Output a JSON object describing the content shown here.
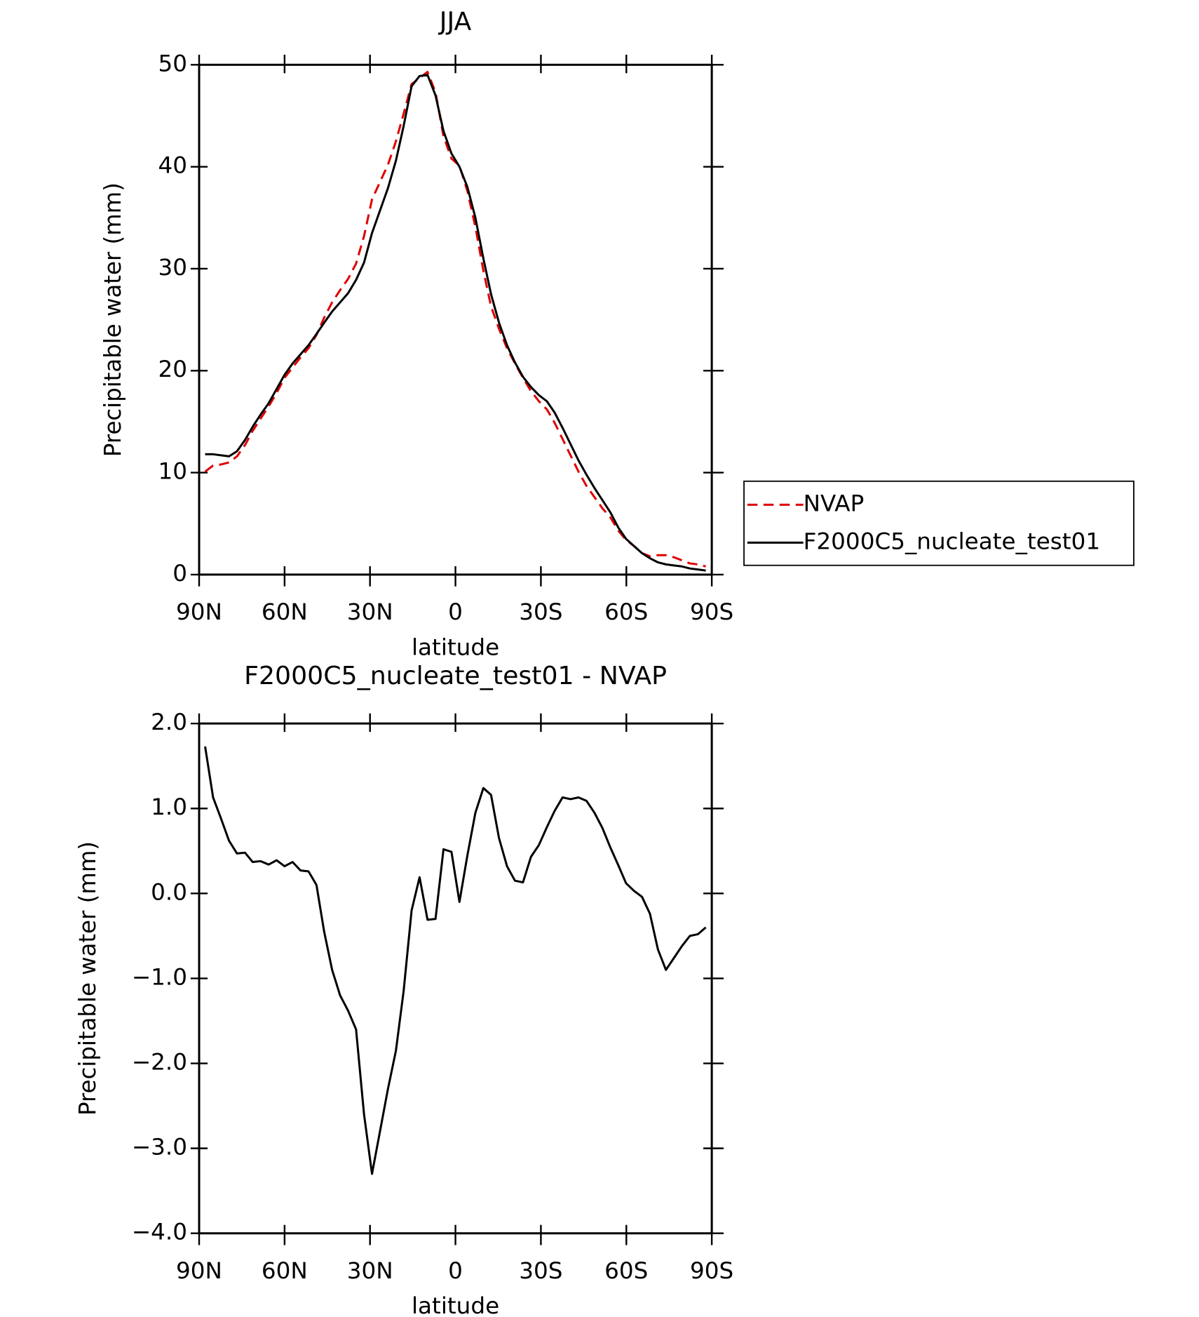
{
  "chart_data": [
    {
      "type": "line",
      "title": "JJA",
      "xlabel": "latitude",
      "ylabel": "Precipitable water (mm)",
      "x": [
        87.9,
        85.1,
        82.3,
        79.5,
        76.7,
        73.9,
        71.2,
        68.4,
        65.6,
        62.8,
        60.0,
        57.2,
        54.4,
        51.6,
        48.8,
        46.1,
        43.3,
        40.5,
        37.7,
        34.9,
        32.1,
        29.3,
        26.5,
        23.7,
        20.9,
        18.2,
        15.4,
        12.6,
        9.8,
        7.0,
        4.2,
        1.4,
        -1.4,
        -4.2,
        -7.0,
        -9.8,
        -12.5,
        -15.3,
        -18.1,
        -20.9,
        -23.7,
        -26.5,
        -29.3,
        -32.1,
        -34.8,
        -37.6,
        -40.4,
        -43.2,
        -46.0,
        -48.8,
        -51.6,
        -54.4,
        -57.2,
        -59.9,
        -62.7,
        -65.5,
        -68.3,
        -71.1,
        -73.9,
        -76.7,
        -79.5,
        -82.3,
        -85.1,
        -87.9
      ],
      "series": [
        {
          "name": "NVAP",
          "color": "#e00000",
          "dash": true,
          "values": [
            10.1,
            10.7,
            10.8,
            11.0,
            11.6,
            12.7,
            14.1,
            15.3,
            16.5,
            17.8,
            19.3,
            20.3,
            21.3,
            22.2,
            23.5,
            25.2,
            26.7,
            27.9,
            29.0,
            30.5,
            33.2,
            36.8,
            38.5,
            40.2,
            42.5,
            45.2,
            48.1,
            48.7,
            49.3,
            47.3,
            43.0,
            40.8,
            40.1,
            37.6,
            34.1,
            29.8,
            26.3,
            24.1,
            22.2,
            20.7,
            19.3,
            18.0,
            17.0,
            16.2,
            14.9,
            13.3,
            11.7,
            10.1,
            8.7,
            7.6,
            6.5,
            5.6,
            4.3,
            3.4,
            2.8,
            2.1,
            1.8,
            1.9,
            1.9,
            1.7,
            1.4,
            1.1,
            1.0,
            0.8
          ]
        },
        {
          "name": "F2000C5_nucleate_test01",
          "color": "#000000",
          "dash": false,
          "values": [
            11.8,
            11.8,
            11.7,
            11.6,
            12.1,
            13.2,
            14.5,
            15.7,
            16.8,
            18.2,
            19.6,
            20.7,
            21.6,
            22.5,
            23.6,
            24.7,
            25.8,
            26.7,
            27.6,
            28.9,
            30.6,
            33.5,
            35.7,
            37.9,
            40.6,
            44.0,
            47.9,
            48.9,
            49.0,
            47.0,
            43.5,
            41.3,
            40.0,
            38.0,
            35.0,
            31.0,
            27.5,
            24.7,
            22.5,
            20.8,
            19.4,
            18.4,
            17.6,
            17.0,
            15.9,
            14.4,
            12.8,
            11.2,
            9.8,
            8.5,
            7.3,
            6.1,
            4.6,
            3.5,
            2.8,
            2.1,
            1.6,
            1.2,
            1.0,
            0.9,
            0.8,
            0.6,
            0.5,
            0.4
          ]
        }
      ],
      "xlim": [
        90,
        -90
      ],
      "xticks": [
        {
          "value": 90,
          "label": "90N"
        },
        {
          "value": 60,
          "label": "60N"
        },
        {
          "value": 30,
          "label": "30N"
        },
        0,
        {
          "value": -30,
          "label": "30S"
        },
        {
          "value": -60,
          "label": "60S"
        },
        {
          "value": -90,
          "label": "90S"
        }
      ],
      "ylim": [
        0,
        50
      ],
      "yticks": [
        0,
        10,
        20,
        30,
        40,
        50
      ]
    },
    {
      "type": "line",
      "title": "F2000C5_nucleate_test01 - NVAP",
      "xlabel": "latitude",
      "ylabel": "Precipitable water (mm)",
      "x": [
        87.9,
        85.1,
        82.3,
        79.5,
        76.7,
        73.9,
        71.2,
        68.4,
        65.6,
        62.8,
        60.0,
        57.2,
        54.4,
        51.6,
        48.8,
        46.1,
        43.3,
        40.5,
        37.7,
        34.9,
        32.1,
        29.3,
        26.5,
        23.7,
        20.9,
        18.2,
        15.4,
        12.6,
        9.8,
        7.0,
        4.2,
        1.4,
        -1.4,
        -4.2,
        -7.0,
        -9.8,
        -12.5,
        -15.3,
        -18.1,
        -20.9,
        -23.7,
        -26.5,
        -29.3,
        -32.1,
        -34.8,
        -37.6,
        -40.4,
        -43.2,
        -46.0,
        -48.8,
        -51.6,
        -54.4,
        -57.2,
        -59.9,
        -62.7,
        -65.5,
        -68.3,
        -71.1,
        -73.9,
        -76.7,
        -79.5,
        -82.3,
        -85.1,
        -87.9
      ],
      "color": "#000000",
      "values": [
        1.73,
        1.13,
        0.88,
        0.62,
        0.47,
        0.48,
        0.37,
        0.38,
        0.34,
        0.39,
        0.32,
        0.37,
        0.27,
        0.26,
        0.1,
        -0.45,
        -0.9,
        -1.2,
        -1.38,
        -1.6,
        -2.6,
        -3.3,
        -2.8,
        -2.3,
        -1.85,
        -1.15,
        -0.2,
        0.19,
        -0.31,
        -0.3,
        0.52,
        0.49,
        -0.1,
        0.45,
        0.95,
        1.24,
        1.16,
        0.65,
        0.32,
        0.15,
        0.13,
        0.43,
        0.57,
        0.78,
        0.97,
        1.13,
        1.11,
        1.13,
        1.09,
        0.95,
        0.77,
        0.54,
        0.33,
        0.12,
        0.03,
        -0.04,
        -0.24,
        -0.66,
        -0.9,
        -0.76,
        -0.62,
        -0.5,
        -0.48,
        -0.4
      ],
      "xlim": [
        90,
        -90
      ],
      "xticks": [
        {
          "value": 90,
          "label": "90N"
        },
        {
          "value": 60,
          "label": "60N"
        },
        {
          "value": 30,
          "label": "30N"
        },
        0,
        {
          "value": -30,
          "label": "30S"
        },
        {
          "value": -60,
          "label": "60S"
        },
        {
          "value": -90,
          "label": "90S"
        }
      ],
      "ylim": [
        -4,
        2
      ],
      "yticks": [
        {
          "value": -4,
          "label": "−4.0"
        },
        {
          "value": -3,
          "label": "−3.0"
        },
        {
          "value": -2,
          "label": "−2.0"
        },
        {
          "value": -1,
          "label": "−1.0"
        },
        {
          "value": 0,
          "label": "0.0"
        },
        {
          "value": 1,
          "label": "1.0"
        },
        {
          "value": 2,
          "label": "2.0"
        }
      ]
    }
  ]
}
